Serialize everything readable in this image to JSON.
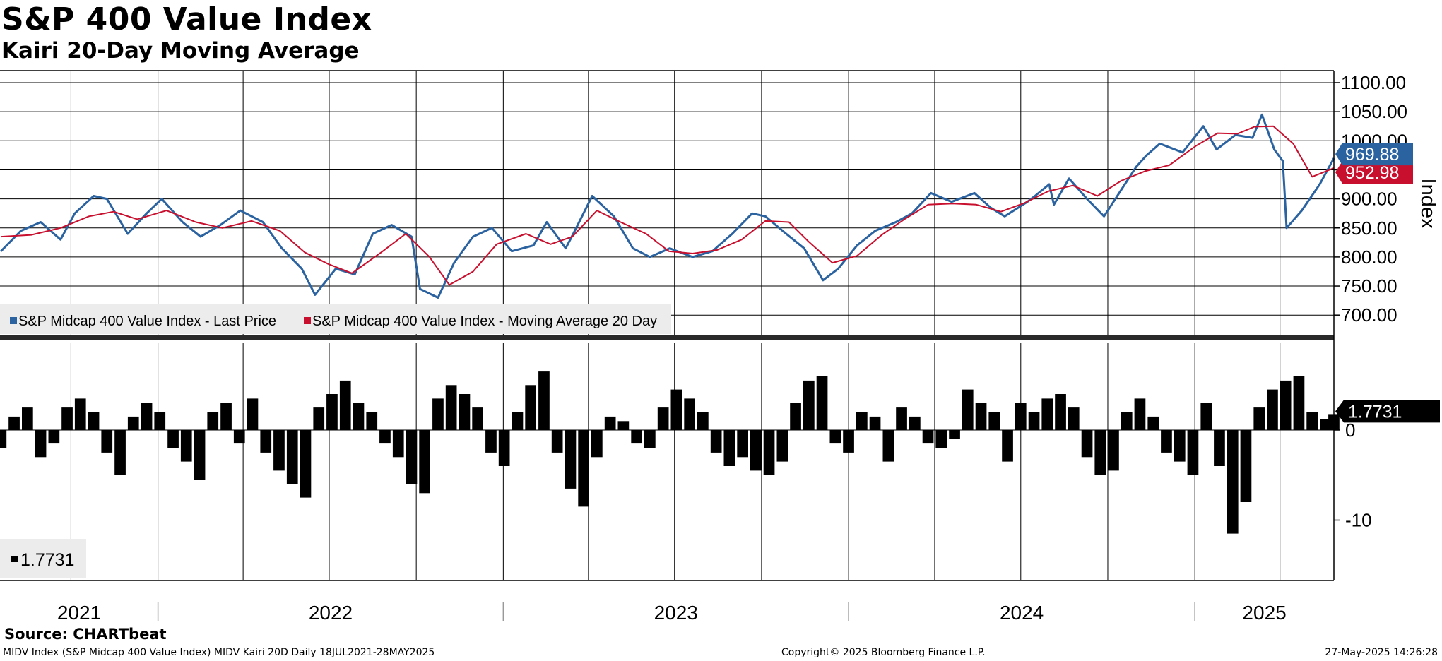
{
  "header": {
    "title": "S&P 400 Value Index",
    "subtitle": "Kairi 20-Day Moving Average"
  },
  "footer": {
    "source": "Source: CHARTbeat",
    "left": "MIDV Index (S&P Midcap 400 Value Index) MIDV Kairi 20D  Daily 18JUL2021-28MAY2025",
    "center": "Copyright© 2025 Bloomberg Finance L.P.",
    "right": "27-May-2025 14:26:28"
  },
  "colors": {
    "price": "#2b62a0",
    "ma": "#c8102e",
    "kairi": "#000000",
    "grid": "#000000"
  },
  "chart_data": [
    {
      "type": "line",
      "ylabel": "Index",
      "ylim": [
        690,
        1110
      ],
      "yticks": [
        "1100.00",
        "1050.00",
        "1000.00",
        "950.00",
        "900.00",
        "850.00",
        "800.00",
        "750.00",
        "700.00"
      ],
      "x_range": [
        "2021-07-18",
        "2025-05-28"
      ],
      "xticks": [
        "2021",
        "2022",
        "2023",
        "2024",
        "2025"
      ],
      "legend": [
        "S&P Midcap 400 Value Index - Last Price",
        "S&P Midcap 400 Value Index - Moving Average 20 Day"
      ],
      "legend_position": "bottom-left",
      "grid": true,
      "last_values": {
        "price": "969.88",
        "ma": "952.98"
      },
      "series": [
        {
          "name": "S&P Midcap 400 Value Index - Last Price",
          "x": [
            "2021-07-19",
            "2021-08-09",
            "2021-08-30",
            "2021-09-20",
            "2021-10-05",
            "2021-10-25",
            "2021-11-08",
            "2021-11-30",
            "2021-12-20",
            "2022-01-05",
            "2022-01-27",
            "2022-02-15",
            "2022-03-08",
            "2022-03-29",
            "2022-04-22",
            "2022-05-12",
            "2022-06-02",
            "2022-06-16",
            "2022-07-08",
            "2022-07-28",
            "2022-08-16",
            "2022-09-05",
            "2022-09-26",
            "2022-10-05",
            "2022-10-24",
            "2022-11-10",
            "2022-11-30",
            "2022-12-20",
            "2023-01-10",
            "2023-02-02",
            "2023-02-16",
            "2023-03-08",
            "2023-03-16",
            "2023-04-05",
            "2023-04-28",
            "2023-05-18",
            "2023-06-05",
            "2023-06-26",
            "2023-07-20",
            "2023-08-10",
            "2023-08-31",
            "2023-09-21",
            "2023-10-05",
            "2023-10-27",
            "2023-11-15",
            "2023-12-05",
            "2023-12-21",
            "2024-01-10",
            "2024-01-29",
            "2024-02-20",
            "2024-03-08",
            "2024-03-28",
            "2024-04-19",
            "2024-05-13",
            "2024-05-30",
            "2024-06-14",
            "2024-07-08",
            "2024-07-16",
            "2024-07-31",
            "2024-08-05",
            "2024-08-21",
            "2024-09-09",
            "2024-09-27",
            "2024-10-15",
            "2024-10-31",
            "2024-11-11",
            "2024-11-25",
            "2024-12-19",
            "2025-01-10",
            "2025-01-24",
            "2025-02-13",
            "2025-03-03",
            "2025-03-13",
            "2025-03-26",
            "2025-04-04",
            "2025-04-08",
            "2025-04-24",
            "2025-05-13",
            "2025-05-28"
          ],
          "values": [
            810,
            845,
            860,
            830,
            875,
            905,
            900,
            840,
            875,
            900,
            860,
            835,
            855,
            880,
            860,
            815,
            780,
            735,
            780,
            770,
            840,
            855,
            835,
            745,
            730,
            790,
            835,
            850,
            810,
            820,
            860,
            815,
            840,
            905,
            870,
            815,
            800,
            815,
            800,
            810,
            840,
            875,
            870,
            840,
            815,
            760,
            780,
            820,
            845,
            860,
            875,
            910,
            895,
            910,
            885,
            870,
            895,
            905,
            925,
            890,
            935,
            900,
            870,
            915,
            955,
            975,
            995,
            980,
            1025,
            985,
            1010,
            1005,
            1045,
            985,
            965,
            850,
            880,
            925,
            970
          ]
        },
        {
          "name": "S&P Midcap 400 Value Index - Moving Average 20 Day",
          "x": [
            "2021-07-19",
            "2021-08-20",
            "2021-09-20",
            "2021-10-20",
            "2021-11-15",
            "2021-12-10",
            "2022-01-10",
            "2022-02-10",
            "2022-03-10",
            "2022-04-10",
            "2022-05-10",
            "2022-06-05",
            "2022-06-30",
            "2022-07-25",
            "2022-08-25",
            "2022-09-20",
            "2022-10-15",
            "2022-11-05",
            "2022-11-30",
            "2022-12-25",
            "2023-01-25",
            "2023-02-20",
            "2023-03-15",
            "2023-04-10",
            "2023-05-05",
            "2023-06-01",
            "2023-06-25",
            "2023-07-20",
            "2023-08-15",
            "2023-09-10",
            "2023-10-05",
            "2023-10-30",
            "2023-11-20",
            "2023-12-15",
            "2024-01-10",
            "2024-02-05",
            "2024-03-01",
            "2024-03-25",
            "2024-04-20",
            "2024-05-15",
            "2024-06-10",
            "2024-07-05",
            "2024-07-30",
            "2024-08-25",
            "2024-09-20",
            "2024-10-15",
            "2024-11-10",
            "2024-12-05",
            "2025-01-02",
            "2025-01-25",
            "2025-02-15",
            "2025-03-05",
            "2025-03-25",
            "2025-04-15",
            "2025-05-05",
            "2025-05-28"
          ],
          "values": [
            835,
            838,
            850,
            870,
            878,
            865,
            880,
            860,
            850,
            862,
            845,
            808,
            788,
            772,
            808,
            840,
            800,
            752,
            775,
            822,
            840,
            822,
            835,
            880,
            860,
            840,
            810,
            806,
            812,
            830,
            862,
            860,
            826,
            790,
            802,
            838,
            866,
            890,
            892,
            890,
            878,
            893,
            913,
            923,
            905,
            931,
            948,
            958,
            991,
            1013,
            1012,
            1024,
            1025,
            995,
            938,
            953
          ]
        }
      ]
    },
    {
      "type": "bar",
      "title": "",
      "ylim": [
        -16,
        8
      ],
      "yticks": [
        "0",
        "-10"
      ],
      "legend": [
        "1.7731"
      ],
      "legend_position": "bottom-left",
      "last_value": "1.7731",
      "x_range": [
        "2021-07-18",
        "2025-05-28"
      ],
      "series": [
        {
          "name": "1.7731",
          "x": [
            "2021-07-19",
            "2021-08-02",
            "2021-08-16",
            "2021-08-30",
            "2021-09-13",
            "2021-09-27",
            "2021-10-11",
            "2021-10-25",
            "2021-11-08",
            "2021-11-22",
            "2021-12-06",
            "2021-12-20",
            "2022-01-03",
            "2022-01-17",
            "2022-01-31",
            "2022-02-14",
            "2022-02-28",
            "2022-03-14",
            "2022-03-28",
            "2022-04-11",
            "2022-04-25",
            "2022-05-09",
            "2022-05-23",
            "2022-06-06",
            "2022-06-20",
            "2022-07-04",
            "2022-07-18",
            "2022-08-01",
            "2022-08-15",
            "2022-08-29",
            "2022-09-12",
            "2022-09-26",
            "2022-10-10",
            "2022-10-24",
            "2022-11-07",
            "2022-11-21",
            "2022-12-05",
            "2022-12-19",
            "2023-01-02",
            "2023-01-16",
            "2023-01-30",
            "2023-02-13",
            "2023-02-27",
            "2023-03-13",
            "2023-03-27",
            "2023-04-10",
            "2023-04-24",
            "2023-05-08",
            "2023-05-22",
            "2023-06-05",
            "2023-06-19",
            "2023-07-03",
            "2023-07-17",
            "2023-07-31",
            "2023-08-14",
            "2023-08-28",
            "2023-09-11",
            "2023-09-25",
            "2023-10-09",
            "2023-10-23",
            "2023-11-06",
            "2023-11-20",
            "2023-12-04",
            "2023-12-18",
            "2024-01-01",
            "2024-01-15",
            "2024-01-29",
            "2024-02-12",
            "2024-02-26",
            "2024-03-11",
            "2024-03-25",
            "2024-04-08",
            "2024-04-22",
            "2024-05-06",
            "2024-05-20",
            "2024-06-03",
            "2024-06-17",
            "2024-07-01",
            "2024-07-15",
            "2024-07-29",
            "2024-08-12",
            "2024-08-26",
            "2024-09-09",
            "2024-09-23",
            "2024-10-07",
            "2024-10-21",
            "2024-11-04",
            "2024-11-18",
            "2024-12-02",
            "2024-12-16",
            "2024-12-30",
            "2025-01-13",
            "2025-01-27",
            "2025-02-10",
            "2025-02-24",
            "2025-03-10",
            "2025-03-24",
            "2025-04-07",
            "2025-04-21",
            "2025-05-05",
            "2025-05-19",
            "2025-05-28"
          ],
          "values": [
            -2.0,
            1.5,
            2.5,
            -3.0,
            -1.5,
            2.5,
            3.5,
            2.0,
            -2.5,
            -5.0,
            1.5,
            3.0,
            2.0,
            -2.0,
            -3.5,
            -5.5,
            2.0,
            3.0,
            -1.5,
            3.5,
            -2.5,
            -4.5,
            -6.0,
            -7.5,
            2.5,
            4.0,
            5.5,
            3.0,
            2.0,
            -1.5,
            -3.0,
            -6.0,
            -7.0,
            3.5,
            5.0,
            4.0,
            2.5,
            -2.5,
            -4.0,
            2.0,
            5.0,
            6.5,
            -2.5,
            -6.5,
            -8.5,
            -3.0,
            1.5,
            1.0,
            -1.5,
            -2.0,
            2.5,
            4.5,
            3.5,
            2.0,
            -2.5,
            -4.0,
            -3.0,
            -4.5,
            -5.0,
            -3.5,
            3.0,
            5.5,
            6.0,
            -1.5,
            -2.5,
            2.0,
            1.5,
            -3.5,
            2.5,
            1.5,
            -1.5,
            -2.0,
            -1.0,
            4.5,
            3.0,
            2.0,
            -3.5,
            3.0,
            2.0,
            3.5,
            4.0,
            2.5,
            -3.0,
            -5.0,
            -4.5,
            2.0,
            3.5,
            1.5,
            -2.5,
            -3.5,
            -5.0,
            3.0,
            -4.0,
            -11.5,
            -8.0,
            2.5,
            4.5,
            5.5,
            6.0,
            2.0,
            1.2,
            1.77
          ]
        }
      ]
    }
  ]
}
